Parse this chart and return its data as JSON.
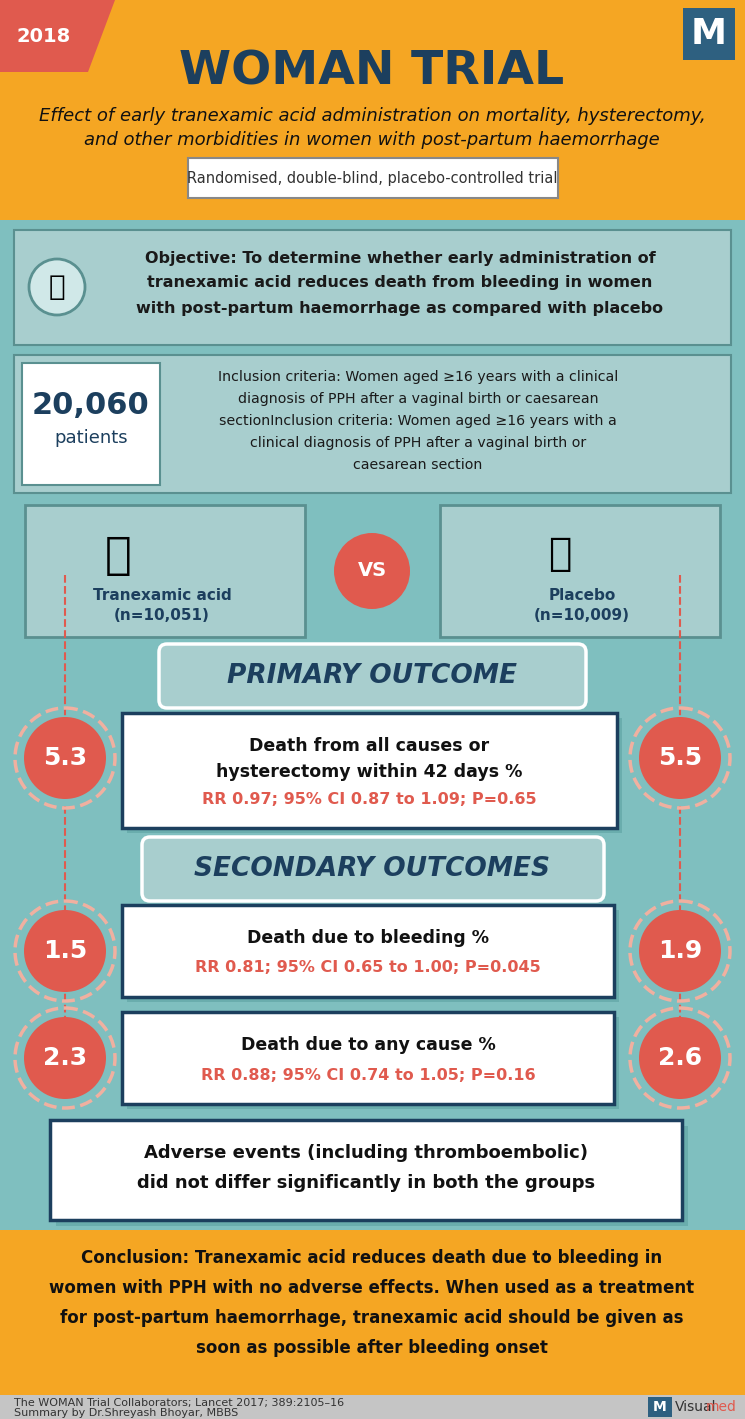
{
  "bg_yellow": "#F5A623",
  "bg_teal": "#7FBFBF",
  "red_circle": "#E05A4E",
  "navy": "#1C3F5E",
  "teal_dark": "#5A9090",
  "teal_box": "#A8CECE",
  "teal_shadow": "#6AADAD",
  "white": "#FFFFFF",
  "title": "WOMAN TRIAL",
  "year": "2018",
  "subtitle1": "Effect of early tranexamic acid administration on mortality, hysterectomy,",
  "subtitle2": "and other morbidities in women with post-partum haemorrhage",
  "trial_type": "Randomised, double-blind, placebo-controlled trial",
  "obj1": "Objective: To determine whether early administration of",
  "obj2": "tranexamic acid reduces death from bleeding in women",
  "obj3": "with post-partum haemorrhage as compared with placebo",
  "patients": "20,060",
  "patients_label": "patients",
  "inc1": "Inclusion criteria: Women aged ≥16 years with a clinical",
  "inc2": "diagnosis of PPH after a vaginal birth or caesarean",
  "inc3": "sectionInclusion criteria: Women aged ≥16 years with a",
  "inc4": "clinical diagnosis of PPH after a vaginal birth or",
  "inc5": "caesarean section",
  "drug1_line1": "Tranexamic acid",
  "drug1_line2": "(n=10,051)",
  "drug2_line1": "Placebo",
  "drug2_line2": "(n=10,009)",
  "vs_text": "VS",
  "primary_outcome_title": "PRIMARY OUTCOME",
  "primary_box1_l1": "Death from all causes or",
  "primary_box1_l2": "hysterectomy within 42 days %",
  "primary_rr1": "RR 0.97; 95% CI 0.87 to 1.09; P=0.65",
  "val_left_primary": "5.3",
  "val_right_primary": "5.5",
  "secondary_outcome_title": "SECONDARY OUTCOMES",
  "sec_box1_l1": "Death due to bleeding %",
  "sec_rr1": "RR 0.81; 95% CI 0.65 to 1.00; P=0.045",
  "val_left_s1": "1.5",
  "val_right_s1": "1.9",
  "sec_box2_l1": "Death due to any cause %",
  "sec_rr2": "RR 0.88; 95% CI 0.74 to 1.05; P=0.16",
  "val_left_s2": "2.3",
  "val_right_s2": "2.6",
  "adv_l1": "Adverse events (including thromboembolic)",
  "adv_l2": "did not differ significantly in both the groups",
  "conc1": "Conclusion: Tranexamic acid reduces death due to bleeding in",
  "conc2": "women with PPH with no adverse effects. When used as a treatment",
  "conc3": "for post-partum haemorrhage, tranexamic acid should be given as",
  "conc4": "soon as possible after bleeding onset",
  "footer1": "The WOMAN Trial Collaborators; Lancet 2017; 389:2105–16",
  "footer2": "Summary by Dr.Shreyash Bhoyar, MBBS",
  "m_logo_color": "#2E6080",
  "footer_bg": "#C5C5C5",
  "visual_color": "#333333",
  "med_color": "#E05A4E"
}
